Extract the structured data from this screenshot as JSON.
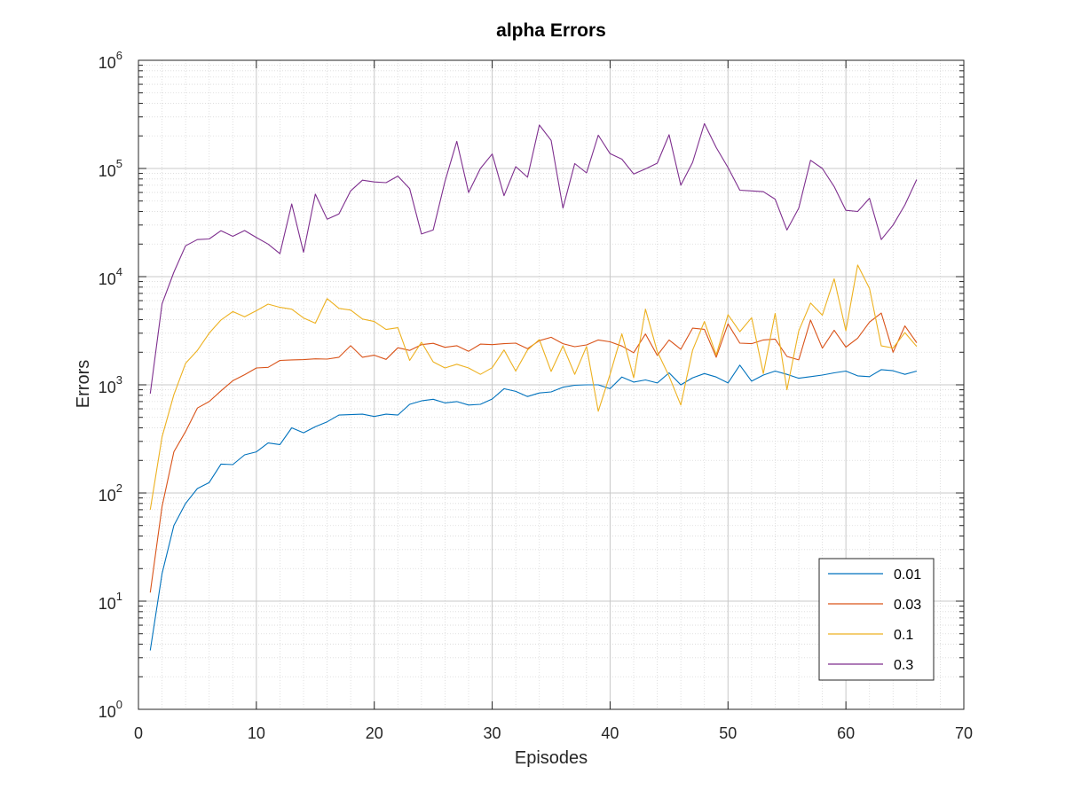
{
  "chart_data": {
    "type": "line",
    "title": "alpha Errors",
    "xlabel": "Episodes",
    "ylabel": "Errors",
    "xscale": "linear",
    "yscale": "log",
    "xlim": [
      0,
      70
    ],
    "ylim": [
      1,
      1000000
    ],
    "xticks": [
      0,
      10,
      20,
      30,
      40,
      50,
      60,
      70
    ],
    "yticks": [
      {
        "base": "10",
        "exp": "0"
      },
      {
        "base": "10",
        "exp": "1"
      },
      {
        "base": "10",
        "exp": "2"
      },
      {
        "base": "10",
        "exp": "3"
      },
      {
        "base": "10",
        "exp": "4"
      },
      {
        "base": "10",
        "exp": "5"
      },
      {
        "base": "10",
        "exp": "6"
      }
    ],
    "grid": true,
    "minor_grid": true,
    "legend_position": "bottom-right",
    "x": [
      1,
      2,
      3,
      4,
      5,
      6,
      7,
      8,
      9,
      10,
      11,
      12,
      13,
      14,
      15,
      16,
      17,
      18,
      19,
      20,
      21,
      22,
      23,
      24,
      25,
      26,
      27,
      28,
      29,
      30,
      31,
      32,
      33,
      34,
      35,
      36,
      37,
      38,
      39,
      40,
      41,
      42,
      43,
      44,
      45,
      46,
      47,
      48,
      49,
      50,
      51,
      52,
      53,
      54,
      55,
      56,
      57,
      58,
      59,
      60,
      61,
      62,
      63,
      64,
      65,
      66
    ],
    "series": [
      {
        "name": "0.01",
        "color": "#0072BD",
        "values": [
          3.5,
          18,
          50,
          80,
          110,
          125,
          185,
          183,
          225,
          240,
          290,
          280,
          400,
          360,
          410,
          455,
          525,
          530,
          535,
          510,
          535,
          525,
          660,
          710,
          735,
          680,
          700,
          650,
          660,
          740,
          920,
          870,
          780,
          840,
          860,
          950,
          990,
          1000,
          1000,
          920,
          1180,
          1060,
          1110,
          1040,
          1290,
          1000,
          1160,
          1270,
          1180,
          1040,
          1520,
          1080,
          1230,
          1340,
          1250,
          1150,
          1190,
          1230,
          1290,
          1340,
          1210,
          1190,
          1380,
          1350,
          1250,
          1340
        ]
      },
      {
        "name": "0.03",
        "color": "#D95319",
        "values": [
          12,
          75,
          240,
          370,
          610,
          700,
          880,
          1090,
          1240,
          1430,
          1450,
          1680,
          1700,
          1710,
          1740,
          1730,
          1800,
          2300,
          1800,
          1880,
          1720,
          2200,
          2080,
          2350,
          2420,
          2220,
          2300,
          2040,
          2380,
          2350,
          2400,
          2430,
          2160,
          2560,
          2750,
          2400,
          2250,
          2340,
          2600,
          2500,
          2280,
          1980,
          2950,
          1870,
          2600,
          2130,
          3340,
          3260,
          1800,
          3660,
          2430,
          2400,
          2600,
          2650,
          1830,
          1700,
          3970,
          2180,
          3200,
          2230,
          2700,
          3800,
          4600,
          2000,
          3500,
          2450
        ]
      },
      {
        "name": "0.1",
        "color": "#EDB120",
        "values": [
          70,
          330,
          810,
          1580,
          2080,
          3000,
          3970,
          4750,
          4250,
          4840,
          5570,
          5200,
          5000,
          4150,
          3710,
          6260,
          5090,
          4910,
          4060,
          3850,
          3250,
          3370,
          1680,
          2480,
          1630,
          1430,
          1550,
          1430,
          1250,
          1440,
          2100,
          1340,
          2100,
          2620,
          1330,
          2290,
          1250,
          2260,
          570,
          1250,
          2960,
          1160,
          5000,
          2030,
          1200,
          650,
          2090,
          3850,
          1890,
          4450,
          3100,
          4170,
          1270,
          4570,
          900,
          3150,
          5700,
          4400,
          9550,
          3160,
          12800,
          7800,
          2290,
          2190,
          3040,
          2260
        ]
      },
      {
        "name": "0.3",
        "color": "#7E2F8E",
        "values": [
          830,
          5600,
          11000,
          19300,
          22000,
          22300,
          26600,
          23600,
          26700,
          23000,
          20000,
          16300,
          47000,
          16800,
          58000,
          34000,
          38000,
          62000,
          78000,
          75000,
          74000,
          85000,
          65000,
          24800,
          27000,
          76000,
          178000,
          60000,
          100000,
          136000,
          56000,
          104000,
          83000,
          252000,
          182000,
          43000,
          111000,
          91000,
          203000,
          137000,
          122000,
          89000,
          99000,
          112000,
          205000,
          70000,
          114000,
          260000,
          156000,
          102000,
          63000,
          62000,
          61000,
          52000,
          27000,
          43000,
          119000,
          100000,
          68000,
          41000,
          40000,
          53000,
          22000,
          30000,
          46000,
          79000
        ]
      }
    ]
  }
}
